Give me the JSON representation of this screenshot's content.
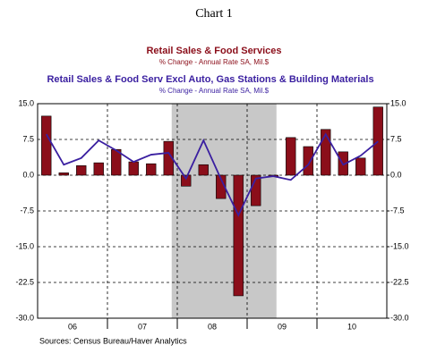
{
  "chart_data": {
    "type": "bar",
    "title": "Chart 1",
    "source": "Sources:  Census Bureau/Haver Analytics",
    "x": [
      2006.125,
      2006.375,
      2006.625,
      2006.875,
      2007.125,
      2007.375,
      2007.625,
      2007.875,
      2008.125,
      2008.375,
      2008.625,
      2008.875,
      2009.125,
      2009.375,
      2009.625,
      2009.875,
      2010.125,
      2010.375,
      2010.625,
      2010.875
    ],
    "xlim": [
      2006,
      2011
    ],
    "xticks": [
      {
        "value": 2006.5,
        "label": "06"
      },
      {
        "value": 2007.5,
        "label": "07"
      },
      {
        "value": 2008.5,
        "label": "08"
      },
      {
        "value": 2009.5,
        "label": "09"
      },
      {
        "value": 2010.5,
        "label": "10"
      }
    ],
    "xgrid": [
      2007,
      2008,
      2009,
      2010
    ],
    "shading": {
      "from": 2007.92,
      "to": 2009.42,
      "color": "#c8c8c8"
    },
    "ylim": [
      -30,
      15
    ],
    "yticks": [
      {
        "value": 15,
        "label": "15.0"
      },
      7.5,
      {
        "value": 0,
        "label": "0.0"
      },
      -7.5,
      {
        "value": -15,
        "label": "-15.0"
      },
      -22.5,
      {
        "value": -30,
        "label": "-30.0"
      }
    ],
    "y2lim": [
      -30,
      15
    ],
    "y2ticks": [
      {
        "value": 15,
        "label": "15.0"
      },
      7.5,
      {
        "value": 0,
        "label": "0.0"
      },
      -7.5,
      {
        "value": -15,
        "label": "-15.0"
      },
      -22.5,
      {
        "value": -30,
        "label": "-30.0"
      }
    ],
    "grid": true,
    "series": [
      {
        "name": "Retail Sales & Food Services",
        "subtitle": "% Change - Annual Rate    SA, Mil.$",
        "type": "bar",
        "color": "#8b0e1a",
        "values": [
          12.4,
          0.5,
          2.0,
          2.6,
          5.4,
          2.8,
          2.4,
          7.1,
          -2.3,
          2.2,
          -4.9,
          -25.3,
          -6.4,
          -0.3,
          7.9,
          6.0,
          9.6,
          4.9,
          3.6,
          14.3
        ]
      },
      {
        "name": "Retail Sales & Food Serv Excl Auto, Gas Stations & Building Materials",
        "subtitle": "% Change - Annual Rate    SA, Mil.$",
        "type": "line",
        "axis": "y2",
        "color": "#3a1fa0",
        "values": [
          8.6,
          2.2,
          3.6,
          7.3,
          5.2,
          2.8,
          4.3,
          4.7,
          -0.7,
          7.3,
          -0.8,
          -8.4,
          -0.7,
          -0.2,
          -1.0,
          2.2,
          8.6,
          2.2,
          4.1,
          7.1
        ]
      }
    ]
  }
}
